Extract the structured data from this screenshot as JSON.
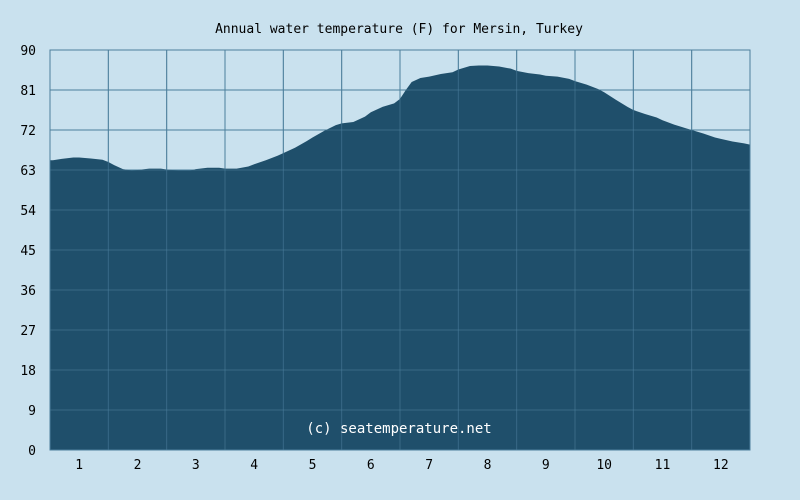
{
  "chart_data": {
    "type": "area",
    "title": "Annual water temperature (F) for Mersin, Turkey",
    "xlabel": "",
    "ylabel": "",
    "x_ticks": [
      "1",
      "2",
      "3",
      "4",
      "5",
      "6",
      "7",
      "8",
      "9",
      "10",
      "11",
      "12"
    ],
    "y_ticks": [
      "0",
      "9",
      "18",
      "27",
      "36",
      "45",
      "54",
      "63",
      "72",
      "81",
      "90"
    ],
    "ylim": [
      0,
      90
    ],
    "xlim": [
      0.5,
      12.5
    ],
    "grid": true,
    "legend": "none",
    "annotation": "(c) seatemperature.net",
    "colors": {
      "background": "#c9e1ee",
      "fill": "#1f4f6b",
      "grid": "#4d7f9c"
    },
    "series": [
      {
        "x": [
          0.5,
          0.55,
          0.7,
          0.9,
          1.0,
          1.2,
          1.4,
          1.5,
          1.6,
          1.75,
          1.9,
          2.0,
          2.2,
          2.4,
          2.5,
          2.7,
          2.9,
          3.0,
          3.2,
          3.4,
          3.5,
          3.7,
          3.9,
          4.0,
          4.2,
          4.4,
          4.5,
          4.7,
          4.9,
          5.0,
          5.2,
          5.4,
          5.5,
          5.7,
          5.9,
          6.0,
          6.2,
          6.4,
          6.5,
          6.6,
          6.7,
          6.85,
          7.0,
          7.2,
          7.4,
          7.5,
          7.6,
          7.7,
          7.85,
          8.0,
          8.2,
          8.4,
          8.5,
          8.7,
          8.9,
          9.0,
          9.2,
          9.4,
          9.5,
          9.7,
          9.9,
          10.0,
          10.2,
          10.4,
          10.5,
          10.7,
          10.9,
          11.0,
          11.2,
          11.4,
          11.5,
          11.7,
          11.9,
          12.0,
          12.2,
          12.4,
          12.5
        ],
        "values": [
          65.2,
          65.2,
          65.5,
          65.8,
          65.8,
          65.6,
          65.3,
          64.8,
          64.1,
          63.2,
          62.9,
          63.0,
          63.3,
          63.3,
          63.1,
          62.9,
          62.9,
          63.2,
          63.5,
          63.5,
          63.3,
          63.3,
          63.8,
          64.3,
          65.2,
          66.2,
          66.8,
          68.0,
          69.5,
          70.3,
          71.8,
          73.1,
          73.5,
          73.8,
          75.0,
          76.0,
          77.2,
          78.0,
          79.0,
          81.0,
          82.8,
          83.7,
          84.0,
          84.6,
          85.0,
          85.6,
          86.0,
          86.4,
          86.5,
          86.5,
          86.3,
          85.8,
          85.3,
          84.8,
          84.5,
          84.2,
          84.0,
          83.5,
          83.0,
          82.2,
          81.2,
          80.5,
          78.8,
          77.2,
          76.5,
          75.6,
          74.8,
          74.2,
          73.2,
          72.4,
          72.0,
          71.2,
          70.3,
          70.0,
          69.4,
          69.0,
          68.7
        ]
      }
    ]
  }
}
